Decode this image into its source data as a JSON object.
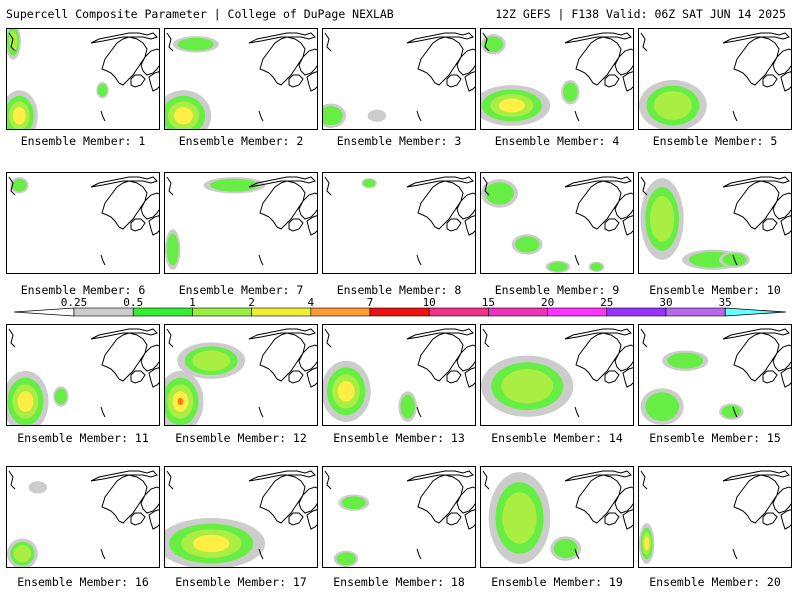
{
  "header": {
    "left": "Supercell Composite Parameter | College of DuPage NEXLAB",
    "right": "12Z GEFS | F138 Valid: 06Z SAT JUN 14 2025"
  },
  "members": [
    {
      "label": "Ensemble Member: 1",
      "blobs": [
        [
          0.04,
          0.12,
          0.05,
          0.18,
          2
        ],
        [
          0.08,
          0.85,
          0.12,
          0.25,
          3
        ],
        [
          0.62,
          0.6,
          0.04,
          0.08,
          1
        ]
      ]
    },
    {
      "label": "Ensemble Member: 2",
      "blobs": [
        [
          0.2,
          0.15,
          0.15,
          0.08,
          1
        ],
        [
          0.12,
          0.85,
          0.18,
          0.25,
          3
        ]
      ]
    },
    {
      "label": "Ensemble Member: 3",
      "blobs": [
        [
          0.05,
          0.85,
          0.1,
          0.12,
          1
        ],
        [
          0.35,
          0.85,
          0.06,
          0.06,
          0
        ]
      ]
    },
    {
      "label": "Ensemble Member: 4",
      "blobs": [
        [
          0.08,
          0.15,
          0.08,
          0.1,
          1
        ],
        [
          0.2,
          0.75,
          0.25,
          0.2,
          3
        ],
        [
          0.58,
          0.62,
          0.06,
          0.12,
          1
        ]
      ]
    },
    {
      "label": "Ensemble Member: 5",
      "blobs": [
        [
          0.22,
          0.75,
          0.22,
          0.25,
          2
        ]
      ]
    },
    {
      "label": "Ensemble Member: 6",
      "blobs": [
        [
          0.08,
          0.12,
          0.06,
          0.08,
          1
        ]
      ]
    },
    {
      "label": "Ensemble Member: 7",
      "blobs": [
        [
          0.45,
          0.12,
          0.2,
          0.08,
          1
        ],
        [
          0.05,
          0.75,
          0.05,
          0.2,
          1
        ]
      ]
    },
    {
      "label": "Ensemble Member: 8",
      "blobs": [
        [
          0.3,
          0.1,
          0.05,
          0.05,
          1
        ]
      ]
    },
    {
      "label": "Ensemble Member: 9",
      "blobs": [
        [
          0.12,
          0.2,
          0.12,
          0.14,
          1
        ],
        [
          0.3,
          0.7,
          0.1,
          0.1,
          1
        ],
        [
          0.5,
          0.92,
          0.08,
          0.06,
          1
        ],
        [
          0.75,
          0.92,
          0.05,
          0.05,
          1
        ]
      ]
    },
    {
      "label": "Ensemble Member: 10",
      "blobs": [
        [
          0.15,
          0.45,
          0.14,
          0.4,
          2
        ],
        [
          0.48,
          0.85,
          0.2,
          0.1,
          1
        ],
        [
          0.62,
          0.85,
          0.1,
          0.08,
          1
        ]
      ]
    },
    {
      "label": "Ensemble Member: 11",
      "blobs": [
        [
          0.12,
          0.75,
          0.15,
          0.3,
          3
        ],
        [
          0.35,
          0.7,
          0.05,
          0.1,
          1
        ]
      ]
    },
    {
      "label": "Ensemble Member: 12",
      "blobs": [
        [
          0.1,
          0.75,
          0.15,
          0.3,
          4
        ],
        [
          0.3,
          0.35,
          0.22,
          0.18,
          2
        ]
      ]
    },
    {
      "label": "Ensemble Member: 13",
      "blobs": [
        [
          0.15,
          0.65,
          0.16,
          0.3,
          3
        ],
        [
          0.55,
          0.8,
          0.06,
          0.15,
          1
        ]
      ]
    },
    {
      "label": "Ensemble Member: 14",
      "blobs": [
        [
          0.3,
          0.6,
          0.3,
          0.3,
          2
        ]
      ]
    },
    {
      "label": "Ensemble Member: 15",
      "blobs": [
        [
          0.3,
          0.35,
          0.15,
          0.1,
          1
        ],
        [
          0.15,
          0.8,
          0.14,
          0.18,
          1
        ],
        [
          0.6,
          0.85,
          0.08,
          0.08,
          1
        ]
      ]
    },
    {
      "label": "Ensemble Member: 16",
      "blobs": [
        [
          0.1,
          0.85,
          0.1,
          0.15,
          2
        ],
        [
          0.2,
          0.2,
          0.06,
          0.06,
          0
        ]
      ]
    },
    {
      "label": "Ensemble Member: 17",
      "blobs": [
        [
          0.3,
          0.75,
          0.35,
          0.25,
          3
        ]
      ]
    },
    {
      "label": "Ensemble Member: 18",
      "blobs": [
        [
          0.2,
          0.35,
          0.1,
          0.08,
          1
        ],
        [
          0.15,
          0.9,
          0.08,
          0.08,
          1
        ]
      ]
    },
    {
      "label": "Ensemble Member: 19",
      "blobs": [
        [
          0.25,
          0.5,
          0.2,
          0.45,
          2
        ],
        [
          0.55,
          0.8,
          0.1,
          0.12,
          1
        ]
      ]
    },
    {
      "label": "Ensemble Member: 20",
      "blobs": [
        [
          0.05,
          0.75,
          0.05,
          0.2,
          3
        ]
      ]
    }
  ],
  "colorbar": {
    "labels": [
      "0.25",
      "0.5",
      "1",
      "2",
      "4",
      "7",
      "10",
      "15",
      "20",
      "25",
      "30",
      "35"
    ],
    "colors": [
      "#cccccc",
      "#33ee33",
      "#99ee44",
      "#eeee33",
      "#ff9933",
      "#ee1111",
      "#ee3388",
      "#ee33bb",
      "#ff33ff",
      "#9933ff",
      "#bb66ee",
      "#66ffff"
    ],
    "contour_colors": [
      "#cccccc",
      "#66ee44",
      "#aaee44",
      "#ffee44",
      "#ff7711"
    ]
  }
}
